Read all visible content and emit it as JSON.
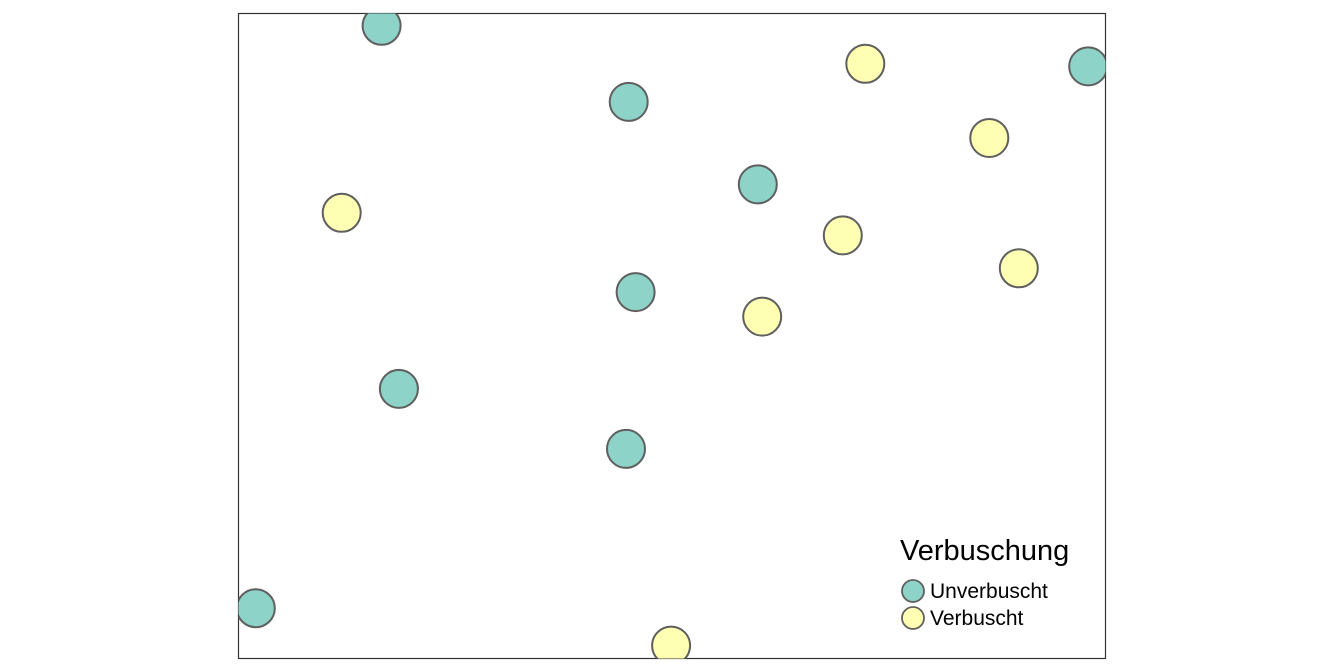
{
  "chart_data": {
    "type": "scatter",
    "title": "",
    "xlabel": "",
    "ylabel": "",
    "xlim": [
      0,
      100
    ],
    "ylim": [
      0,
      100
    ],
    "grid": false,
    "legend": {
      "title": "Verbuschung",
      "placement": "bottom-right"
    },
    "series": [
      {
        "name": "Unverbuscht",
        "color": "#8dd3c7",
        "points": [
          {
            "x": 16.5,
            "y": 98.1
          },
          {
            "x": 45.0,
            "y": 86.3
          },
          {
            "x": 98.0,
            "y": 91.8
          },
          {
            "x": 59.9,
            "y": 73.5
          },
          {
            "x": 45.8,
            "y": 56.8
          },
          {
            "x": 18.5,
            "y": 41.8
          },
          {
            "x": 44.7,
            "y": 32.5
          },
          {
            "x": 2.0,
            "y": 7.8
          }
        ]
      },
      {
        "name": "Verbuscht",
        "color": "#ffffb3",
        "points": [
          {
            "x": 72.3,
            "y": 92.2
          },
          {
            "x": 86.6,
            "y": 80.7
          },
          {
            "x": 11.9,
            "y": 69.1
          },
          {
            "x": 69.7,
            "y": 65.6
          },
          {
            "x": 90.0,
            "y": 60.5
          },
          {
            "x": 60.4,
            "y": 53.0
          },
          {
            "x": 49.9,
            "y": 2.0
          }
        ]
      }
    ]
  }
}
